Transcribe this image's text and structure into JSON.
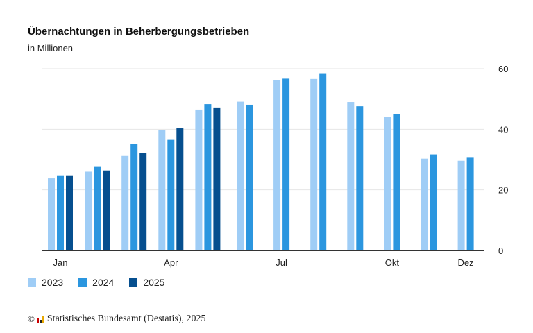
{
  "chart_data": {
    "type": "bar",
    "title": "Übernachtungen in Beherbergungsbetrieben",
    "subtitle": "in Millionen",
    "x_tick_labels": [
      {
        "month_index": 0,
        "label": "Jan"
      },
      {
        "month_index": 3,
        "label": "Apr"
      },
      {
        "month_index": 6,
        "label": "Jul"
      },
      {
        "month_index": 9,
        "label": "Okt"
      },
      {
        "month_index": 11,
        "label": "Dez"
      }
    ],
    "y_ticks": [
      0,
      20,
      40,
      60
    ],
    "ylim": [
      0,
      60
    ],
    "y_axis_side": "right",
    "grid": true,
    "legend_position": "bottom-left",
    "series": [
      {
        "name": "2023",
        "color": "#9fcdf6",
        "values": [
          23.8,
          26.0,
          31.2,
          39.7,
          46.5,
          49.1,
          56.3,
          56.6,
          49.0,
          44.0,
          30.3,
          29.6
        ]
      },
      {
        "name": "2024",
        "color": "#2b96df",
        "values": [
          24.8,
          27.8,
          35.2,
          36.5,
          48.3,
          48.1,
          56.7,
          58.5,
          47.6,
          44.9,
          31.7,
          30.6
        ]
      },
      {
        "name": "2025",
        "color": "#064f8f",
        "values": [
          24.8,
          26.4,
          32.1,
          40.3,
          47.2,
          null,
          null,
          null,
          null,
          null,
          null,
          null
        ]
      }
    ]
  },
  "footer": {
    "copyright_symbol": "©",
    "source": "Statistisches Bundesamt (Destatis), 2025"
  }
}
